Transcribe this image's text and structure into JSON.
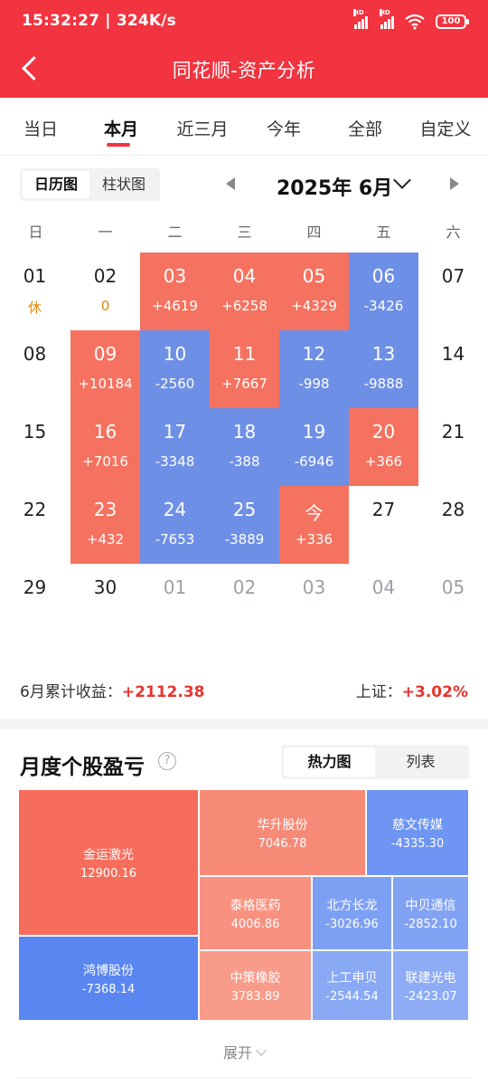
{
  "status": {
    "time_speed": "15:32:27 | 324K/s",
    "battery": "100"
  },
  "header": {
    "title": "同花顺-资产分析"
  },
  "tabs": [
    "当日",
    "本月",
    "近三月",
    "今年",
    "全部",
    "自定义"
  ],
  "calendar": {
    "view_options": [
      "日历图",
      "柱状图"
    ],
    "month_label": "2025年 6月",
    "weekdays": [
      "日",
      "一",
      "二",
      "三",
      "四",
      "五",
      "六"
    ],
    "days": [
      {
        "day": "01",
        "value": "休",
        "kind": "neutral"
      },
      {
        "day": "02",
        "value": "0",
        "kind": "neutral"
      },
      {
        "day": "03",
        "value": "+4619",
        "kind": "up"
      },
      {
        "day": "04",
        "value": "+6258",
        "kind": "up"
      },
      {
        "day": "05",
        "value": "+4329",
        "kind": "up"
      },
      {
        "day": "06",
        "value": "-3426",
        "kind": "down"
      },
      {
        "day": "07",
        "value": "",
        "kind": "none"
      },
      {
        "day": "08",
        "value": "",
        "kind": "none"
      },
      {
        "day": "09",
        "value": "+10184",
        "kind": "up"
      },
      {
        "day": "10",
        "value": "-2560",
        "kind": "down"
      },
      {
        "day": "11",
        "value": "+7667",
        "kind": "up"
      },
      {
        "day": "12",
        "value": "-998",
        "kind": "down"
      },
      {
        "day": "13",
        "value": "-9888",
        "kind": "down"
      },
      {
        "day": "14",
        "value": "",
        "kind": "none"
      },
      {
        "day": "15",
        "value": "",
        "kind": "none"
      },
      {
        "day": "16",
        "value": "+7016",
        "kind": "up"
      },
      {
        "day": "17",
        "value": "-3348",
        "kind": "down"
      },
      {
        "day": "18",
        "value": "-388",
        "kind": "down"
      },
      {
        "day": "19",
        "value": "-6946",
        "kind": "down"
      },
      {
        "day": "20",
        "value": "+366",
        "kind": "up"
      },
      {
        "day": "21",
        "value": "",
        "kind": "none"
      },
      {
        "day": "22",
        "value": "",
        "kind": "none"
      },
      {
        "day": "23",
        "value": "+432",
        "kind": "up"
      },
      {
        "day": "24",
        "value": "-7653",
        "kind": "down"
      },
      {
        "day": "25",
        "value": "-3889",
        "kind": "down"
      },
      {
        "day": "今",
        "value": "+336",
        "kind": "up"
      },
      {
        "day": "27",
        "value": "",
        "kind": "none"
      },
      {
        "day": "28",
        "value": "",
        "kind": "none"
      },
      {
        "day": "29",
        "value": "",
        "kind": "none"
      },
      {
        "day": "30",
        "value": "",
        "kind": "none"
      },
      {
        "day": "01",
        "value": "",
        "kind": "next"
      },
      {
        "day": "02",
        "value": "",
        "kind": "next"
      },
      {
        "day": "03",
        "value": "",
        "kind": "next"
      },
      {
        "day": "04",
        "value": "",
        "kind": "next"
      },
      {
        "day": "05",
        "value": "",
        "kind": "next"
      }
    ]
  },
  "summary": {
    "month_label": "6月累计收益：",
    "month_value": "+2112.38",
    "index_label": "上证：",
    "index_value": "+3.02%"
  },
  "section": {
    "title": "月度个股盈亏",
    "help": "?",
    "view_options": [
      "热力图",
      "列表"
    ],
    "expand": "展开"
  },
  "colors": {
    "up": "#f4725f",
    "down": "#6e8fe6",
    "accent": "#f1343f"
  },
  "treemap": [
    {
      "name": "金运激光",
      "value": "12900.16",
      "color": "#f66d5c"
    },
    {
      "name": "鸿博股份",
      "value": "-7368.14",
      "color": "#5a86f2"
    },
    {
      "name": "华升股份",
      "value": "7046.78",
      "color": "#f78a77"
    },
    {
      "name": "慈文传媒",
      "value": "-4335.30",
      "color": "#6e95f3"
    },
    {
      "name": "泰格医药",
      "value": "4006.86",
      "color": "#f8917f"
    },
    {
      "name": "北方长龙",
      "value": "-3026.96",
      "color": "#7ea0f4"
    },
    {
      "name": "中贝通信",
      "value": "-2852.10",
      "color": "#82a3f4"
    },
    {
      "name": "中策橡胶",
      "value": "3783.89",
      "color": "#f99b8a"
    },
    {
      "name": "上工申贝",
      "value": "-2544.54",
      "color": "#8aa9f5"
    },
    {
      "name": "联建光电",
      "value": "-2423.07",
      "color": "#8eacf5"
    }
  ]
}
